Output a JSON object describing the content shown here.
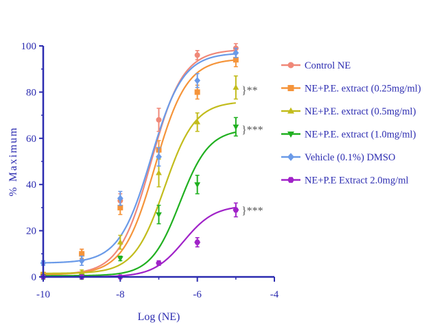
{
  "chart_data": {
    "type": "line",
    "xlabel": "Log (NE)",
    "ylabel": "% Maximum",
    "xlim": [
      -10,
      -4
    ],
    "ylim": [
      0,
      100
    ],
    "xticks": [
      -10,
      -8,
      -6,
      -4
    ],
    "yticks": [
      0,
      20,
      40,
      60,
      80,
      100
    ],
    "legend_position": "right",
    "series": [
      {
        "name": "Control NE",
        "color": "#f08878",
        "marker": "circle",
        "curve": {
          "bottom": 1,
          "top": 98.5,
          "logEC50": -7.2,
          "hill": 1.05
        },
        "points": [
          {
            "x": -10,
            "y": 1,
            "err": 1
          },
          {
            "x": -9,
            "y": 10,
            "err": 2
          },
          {
            "x": -8,
            "y": 33,
            "err": 3
          },
          {
            "x": -7,
            "y": 68,
            "err": 5
          },
          {
            "x": -6,
            "y": 96,
            "err": 2
          },
          {
            "x": -5,
            "y": 99,
            "err": 2
          }
        ]
      },
      {
        "name": "NE+P.E. extract (0.25mg/ml)",
        "color": "#f5943a",
        "marker": "square",
        "curve": {
          "bottom": 1,
          "top": 94.5,
          "logEC50": -7.1,
          "hill": 1.05
        },
        "points": [
          {
            "x": -10,
            "y": 1,
            "err": 1
          },
          {
            "x": -9,
            "y": 10,
            "err": 2
          },
          {
            "x": -8,
            "y": 30,
            "err": 3
          },
          {
            "x": -7,
            "y": 55,
            "err": 4
          },
          {
            "x": -6,
            "y": 80,
            "err": 3
          },
          {
            "x": -5,
            "y": 94,
            "err": 3
          }
        ]
      },
      {
        "name": "NE+P.E. extract (0.5mg/ml)",
        "color": "#c2bc1c",
        "marker": "triangle-up",
        "curve": {
          "bottom": 1.5,
          "top": 76,
          "logEC50": -6.85,
          "hill": 1.1
        },
        "points": [
          {
            "x": -10,
            "y": 1,
            "err": 1
          },
          {
            "x": -9,
            "y": 2,
            "err": 1
          },
          {
            "x": -8,
            "y": 15,
            "err": 3
          },
          {
            "x": -7,
            "y": 45,
            "err": 6
          },
          {
            "x": -6,
            "y": 67,
            "err": 4
          },
          {
            "x": -5,
            "y": 82,
            "err": 5
          }
        ]
      },
      {
        "name": "NE+P.E. extract (1.0mg/ml)",
        "color": "#20b020",
        "marker": "triangle-down",
        "curve": {
          "bottom": 0.5,
          "top": 64,
          "logEC50": -6.45,
          "hill": 1.15
        },
        "points": [
          {
            "x": -10,
            "y": 0,
            "err": 1
          },
          {
            "x": -9,
            "y": 0,
            "err": 1
          },
          {
            "x": -8,
            "y": 8,
            "err": 1
          },
          {
            "x": -7,
            "y": 27,
            "err": 4
          },
          {
            "x": -6,
            "y": 40,
            "err": 4
          },
          {
            "x": -5,
            "y": 65,
            "err": 4
          }
        ]
      },
      {
        "name": "Vehicle (0.1%) DMSO",
        "color": "#6a9ae8",
        "marker": "diamond",
        "curve": {
          "bottom": 6,
          "top": 97,
          "logEC50": -7.2,
          "hill": 1.05
        },
        "points": [
          {
            "x": -10,
            "y": 6,
            "err": 1
          },
          {
            "x": -9,
            "y": 7,
            "err": 2
          },
          {
            "x": -8,
            "y": 34,
            "err": 3
          },
          {
            "x": -7,
            "y": 52,
            "err": 4
          },
          {
            "x": -6,
            "y": 85,
            "err": 3
          },
          {
            "x": -5,
            "y": 97,
            "err": 2
          }
        ]
      },
      {
        "name": "NE+P.E Extract 2.0mg/ml",
        "color": "#a022c8",
        "marker": "hexagon",
        "curve": {
          "bottom": 0,
          "top": 31,
          "logEC50": -6.35,
          "hill": 1.1
        },
        "points": [
          {
            "x": -10,
            "y": 0,
            "err": 0.5
          },
          {
            "x": -9,
            "y": 0,
            "err": 0.5
          },
          {
            "x": -8,
            "y": 0,
            "err": 0.5
          },
          {
            "x": -7,
            "y": 6,
            "err": 1
          },
          {
            "x": -6,
            "y": 15,
            "err": 2
          },
          {
            "x": -5,
            "y": 29,
            "err": 3
          }
        ]
      }
    ],
    "annotations": [
      {
        "label": "** ",
        "text": "}**",
        "y_from": 75,
        "y_to": 87
      },
      {
        "text": "}***",
        "y_from": 60,
        "y_to": 68
      },
      {
        "text": "}***",
        "y_from": 27,
        "y_to": 31
      }
    ]
  }
}
